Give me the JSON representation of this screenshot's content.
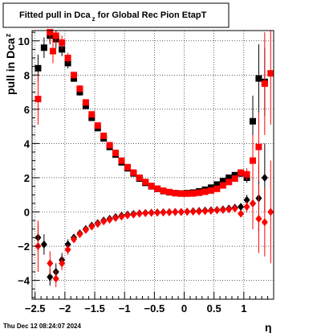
{
  "chart_data": {
    "type": "scatter",
    "title": {
      "main": "Fitted pull in Dca",
      "sub": "z",
      "rest": " for Global Rec Pion EtapT"
    },
    "ylabel": {
      "main": "pull in Dca",
      "sub": "z"
    },
    "xlabel": "η",
    "footer": "Thu Dec 12 08:24:07 2024",
    "xlim": [
      -2.55,
      1.5
    ],
    "ylim": [
      -5.1,
      10.6
    ],
    "x_ticks": [
      -2.5,
      -2,
      -1.5,
      -1,
      -0.5,
      0,
      0.5,
      1
    ],
    "x_tick_labels": [
      "−2.5",
      "−2",
      "−1.5",
      "−1",
      "−0.5",
      "0",
      "0.5",
      "1"
    ],
    "y_ticks": [
      -4,
      -2,
      0,
      2,
      4,
      6,
      8,
      10
    ],
    "y_tick_labels": [
      "−4",
      "−2",
      "0",
      "2",
      "4",
      "6",
      "8",
      "10"
    ],
    "grid": true,
    "colors": {
      "black": "#000000",
      "red": "#ff0000"
    },
    "series": [
      {
        "color": "black",
        "marker": "square",
        "points": [
          [
            -2.45,
            8.4,
            0.8
          ],
          [
            -2.35,
            9.6,
            0.6
          ],
          [
            -2.25,
            10.3,
            0.5
          ],
          [
            -2.15,
            10.1,
            0.5
          ],
          [
            -2.05,
            9.5,
            0.4
          ],
          [
            -1.95,
            8.7,
            0.3
          ],
          [
            -1.85,
            7.8,
            0.2
          ],
          [
            -1.75,
            7.0,
            0.2
          ],
          [
            -1.65,
            6.2,
            0.15
          ],
          [
            -1.55,
            5.5,
            0.1
          ],
          [
            -1.45,
            4.9,
            0.1
          ],
          [
            -1.35,
            4.3,
            0.1
          ],
          [
            -1.25,
            3.8,
            0.08
          ],
          [
            -1.15,
            3.35,
            0.08
          ],
          [
            -1.05,
            2.9,
            0.07
          ],
          [
            -0.95,
            2.55,
            0.07
          ],
          [
            -0.85,
            2.25,
            0.06
          ],
          [
            -0.75,
            1.95,
            0.06
          ],
          [
            -0.65,
            1.7,
            0.05
          ],
          [
            -0.55,
            1.5,
            0.05
          ],
          [
            -0.45,
            1.35,
            0.05
          ],
          [
            -0.35,
            1.22,
            0.05
          ],
          [
            -0.25,
            1.15,
            0.05
          ],
          [
            -0.15,
            1.1,
            0.05
          ],
          [
            -0.05,
            1.08,
            0.05
          ],
          [
            0.05,
            1.1,
            0.05
          ],
          [
            0.15,
            1.13,
            0.05
          ],
          [
            0.25,
            1.2,
            0.05
          ],
          [
            0.35,
            1.3,
            0.06
          ],
          [
            0.45,
            1.42,
            0.07
          ],
          [
            0.55,
            1.6,
            0.08
          ],
          [
            0.65,
            1.8,
            0.1
          ],
          [
            0.75,
            2.0,
            0.12
          ],
          [
            0.85,
            2.15,
            0.15
          ],
          [
            0.95,
            2.25,
            0.2
          ],
          [
            1.05,
            2.0,
            0.3
          ],
          [
            1.15,
            5.3,
            1.5
          ],
          [
            1.25,
            7.8,
            2.0
          ],
          [
            1.35,
            7.6,
            2.0
          ]
        ]
      },
      {
        "color": "black",
        "marker": "diamond",
        "points": [
          [
            -2.45,
            -1.5,
            0.8
          ],
          [
            -2.35,
            -1.9,
            0.6
          ],
          [
            -2.25,
            -3.8,
            0.5
          ],
          [
            -2.15,
            -3.5,
            0.5
          ],
          [
            -2.05,
            -2.8,
            0.4
          ],
          [
            -1.95,
            -1.9,
            0.3
          ],
          [
            -1.85,
            -1.5,
            0.2
          ],
          [
            -1.75,
            -1.25,
            0.2
          ],
          [
            -1.65,
            -1.0,
            0.15
          ],
          [
            -1.55,
            -0.8,
            0.1
          ],
          [
            -1.45,
            -0.65,
            0.1
          ],
          [
            -1.35,
            -0.5,
            0.1
          ],
          [
            -1.25,
            -0.4,
            0.08
          ],
          [
            -1.15,
            -0.3,
            0.08
          ],
          [
            -1.05,
            -0.22,
            0.07
          ],
          [
            -0.95,
            -0.16,
            0.07
          ],
          [
            -0.85,
            -0.12,
            0.06
          ],
          [
            -0.75,
            -0.08,
            0.06
          ],
          [
            -0.65,
            -0.06,
            0.05
          ],
          [
            -0.55,
            -0.04,
            0.05
          ],
          [
            -0.45,
            -0.03,
            0.05
          ],
          [
            -0.35,
            -0.02,
            0.05
          ],
          [
            -0.25,
            -0.01,
            0.05
          ],
          [
            -0.15,
            0.0,
            0.05
          ],
          [
            -0.05,
            0.0,
            0.05
          ],
          [
            0.05,
            0.02,
            0.05
          ],
          [
            0.15,
            0.04,
            0.05
          ],
          [
            0.25,
            0.06,
            0.05
          ],
          [
            0.35,
            0.08,
            0.06
          ],
          [
            0.45,
            0.1,
            0.07
          ],
          [
            0.55,
            0.12,
            0.08
          ],
          [
            0.65,
            0.15,
            0.1
          ],
          [
            0.75,
            0.2,
            0.12
          ],
          [
            0.85,
            0.25,
            0.15
          ],
          [
            0.95,
            0.3,
            0.2
          ],
          [
            1.05,
            0.7,
            0.3
          ],
          [
            1.15,
            0.5,
            1.5
          ],
          [
            1.25,
            0.8,
            2.0
          ],
          [
            1.35,
            2.0,
            2.0
          ]
        ]
      },
      {
        "color": "red",
        "marker": "square",
        "points": [
          [
            -2.45,
            6.6,
            1.5
          ],
          [
            -2.25,
            10.5,
            0.6
          ],
          [
            -2.2,
            9.4,
            0.7
          ],
          [
            -2.15,
            10.3,
            0.5
          ],
          [
            -2.05,
            9.9,
            0.4
          ],
          [
            -1.95,
            9.0,
            0.3
          ],
          [
            -1.85,
            8.0,
            0.2
          ],
          [
            -1.75,
            7.2,
            0.2
          ],
          [
            -1.65,
            6.4,
            0.15
          ],
          [
            -1.55,
            5.7,
            0.1
          ],
          [
            -1.45,
            5.05,
            0.1
          ],
          [
            -1.35,
            4.45,
            0.1
          ],
          [
            -1.25,
            3.9,
            0.08
          ],
          [
            -1.15,
            3.45,
            0.08
          ],
          [
            -1.05,
            3.0,
            0.07
          ],
          [
            -0.95,
            2.62,
            0.07
          ],
          [
            -0.85,
            2.3,
            0.06
          ],
          [
            -0.75,
            2.0,
            0.06
          ],
          [
            -0.65,
            1.75,
            0.05
          ],
          [
            -0.55,
            1.52,
            0.05
          ],
          [
            -0.45,
            1.36,
            0.05
          ],
          [
            -0.35,
            1.24,
            0.05
          ],
          [
            -0.25,
            1.16,
            0.05
          ],
          [
            -0.15,
            1.1,
            0.05
          ],
          [
            -0.05,
            1.07,
            0.05
          ],
          [
            0.05,
            1.07,
            0.05
          ],
          [
            0.15,
            1.08,
            0.05
          ],
          [
            0.25,
            1.12,
            0.05
          ],
          [
            0.35,
            1.18,
            0.06
          ],
          [
            0.45,
            1.25,
            0.07
          ],
          [
            0.55,
            1.35,
            0.08
          ],
          [
            0.65,
            1.55,
            0.1
          ],
          [
            0.75,
            1.75,
            0.12
          ],
          [
            0.85,
            1.95,
            0.15
          ],
          [
            0.95,
            2.3,
            0.2
          ],
          [
            1.05,
            2.2,
            0.35
          ],
          [
            1.15,
            3.0,
            1.5
          ],
          [
            1.25,
            3.8,
            2.0
          ],
          [
            1.35,
            7.5,
            3.0
          ],
          [
            1.45,
            8.1,
            3.0
          ]
        ]
      },
      {
        "color": "red",
        "marker": "diamond",
        "points": [
          [
            -2.45,
            -2.0,
            1.5
          ],
          [
            -2.25,
            -3.0,
            0.7
          ],
          [
            -2.15,
            -3.9,
            0.5
          ],
          [
            -2.05,
            -3.0,
            0.4
          ],
          [
            -1.95,
            -2.2,
            0.3
          ],
          [
            -1.85,
            -1.6,
            0.2
          ],
          [
            -1.75,
            -1.3,
            0.2
          ],
          [
            -1.65,
            -1.05,
            0.15
          ],
          [
            -1.55,
            -0.85,
            0.1
          ],
          [
            -1.45,
            -0.7,
            0.1
          ],
          [
            -1.35,
            -0.55,
            0.1
          ],
          [
            -1.25,
            -0.45,
            0.08
          ],
          [
            -1.15,
            -0.35,
            0.08
          ],
          [
            -1.05,
            -0.27,
            0.07
          ],
          [
            -0.95,
            -0.2,
            0.07
          ],
          [
            -0.85,
            -0.15,
            0.06
          ],
          [
            -0.75,
            -0.1,
            0.06
          ],
          [
            -0.65,
            -0.07,
            0.05
          ],
          [
            -0.55,
            -0.05,
            0.05
          ],
          [
            -0.45,
            -0.04,
            0.05
          ],
          [
            -0.35,
            -0.03,
            0.05
          ],
          [
            -0.25,
            -0.02,
            0.05
          ],
          [
            -0.15,
            0.0,
            0.05
          ],
          [
            -0.05,
            0.0,
            0.05
          ],
          [
            0.05,
            0.01,
            0.05
          ],
          [
            0.15,
            0.02,
            0.05
          ],
          [
            0.25,
            0.03,
            0.05
          ],
          [
            0.35,
            0.05,
            0.06
          ],
          [
            0.45,
            0.07,
            0.07
          ],
          [
            0.55,
            0.1,
            0.08
          ],
          [
            0.65,
            0.12,
            0.1
          ],
          [
            0.75,
            0.15,
            0.12
          ],
          [
            0.85,
            0.2,
            0.15
          ],
          [
            0.95,
            -0.1,
            0.2
          ],
          [
            1.05,
            0.3,
            0.35
          ],
          [
            1.15,
            0.5,
            1.5
          ],
          [
            1.25,
            -0.4,
            2.0
          ],
          [
            1.35,
            -0.6,
            2.0
          ],
          [
            1.45,
            0.0,
            3.0
          ]
        ]
      }
    ]
  }
}
